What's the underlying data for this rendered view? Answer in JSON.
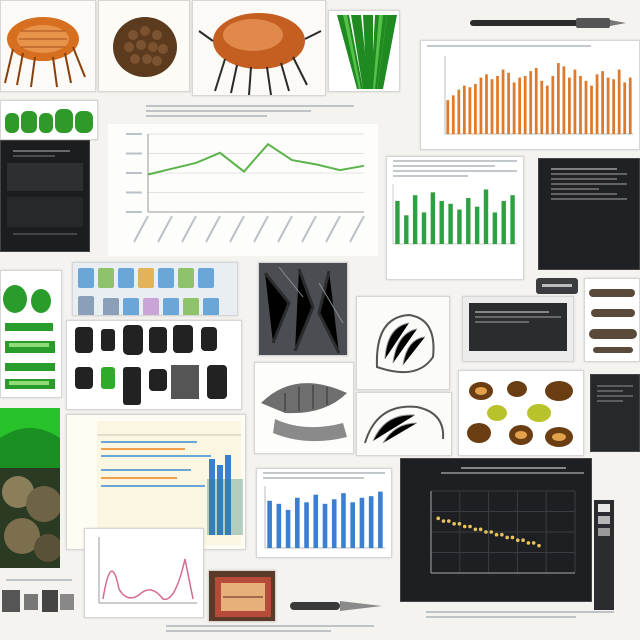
{
  "collage": {
    "description_text": [],
    "colors": {
      "orange_bars": "#e07a2a",
      "green_line": "#5bb34a",
      "blue_bars": "#3b7fd1",
      "dark_panel": "#1d1f22",
      "paper": "#ffffff",
      "bright_green": "#1fa32b"
    }
  },
  "chart_top_right": {
    "chart_data": {
      "type": "bar",
      "values": [
        42,
        48,
        55,
        60,
        58,
        62,
        70,
        74,
        68,
        72,
        80,
        76,
        64,
        70,
        72,
        78,
        82,
        66,
        60,
        72,
        88,
        84,
        70,
        80,
        72,
        66,
        60,
        74,
        78,
        70,
        68,
        80,
        64,
        70
      ],
      "color": "#e07a2a"
    }
  },
  "chart_mid_left": {
    "chart_data": {
      "type": "line",
      "values": [
        26,
        30,
        34,
        41,
        28,
        47,
        36,
        33,
        29,
        32
      ],
      "color": "#5bb34a"
    }
  },
  "chart_mid_right": {
    "chart_data": {
      "type": "bar",
      "values": [
        30,
        20,
        34,
        22,
        36,
        30,
        28,
        24,
        32,
        26,
        38,
        22,
        30,
        34
      ],
      "color": "#2fa042"
    }
  },
  "chart_bottom_mid": {
    "chart_data": {
      "type": "bar",
      "values": [
        62,
        58,
        50,
        66,
        60,
        70,
        58,
        64,
        72,
        60,
        66,
        68,
        74
      ],
      "color": "#3b7fd1"
    }
  },
  "chart_bottom_right": {
    "chart_data": {
      "type": "scatter",
      "x": [
        1,
        2,
        3,
        4,
        5,
        6,
        7,
        8,
        9,
        10,
        11,
        12,
        13,
        14,
        15,
        16,
        17,
        18,
        19,
        20
      ],
      "y": [
        54,
        53,
        53,
        52,
        52,
        51,
        51,
        50,
        50,
        49,
        49,
        48,
        48,
        47,
        47,
        46,
        46,
        45,
        45,
        44
      ],
      "color": "#e8c25a"
    }
  }
}
